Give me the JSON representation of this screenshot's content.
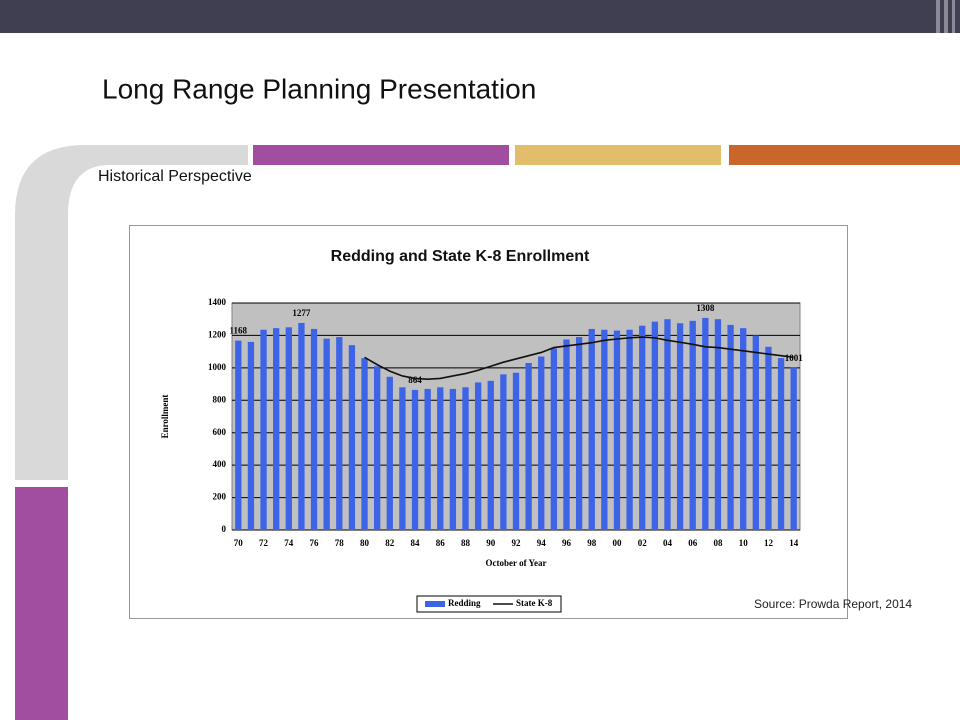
{
  "slide": {
    "title": "Long Range Planning Presentation",
    "subtitle": "Historical Perspective",
    "source": "Source: Prowda Report, 2014"
  },
  "chart_data": {
    "type": "bar",
    "title": "Redding and State K-8 Enrollment",
    "x_label": "October of Year",
    "y_label": "Enrollment",
    "categories": [
      "70",
      null,
      "72",
      null,
      "74",
      null,
      "76",
      null,
      "78",
      null,
      "80",
      null,
      "82",
      null,
      "84",
      null,
      "86",
      null,
      "88",
      null,
      "90",
      null,
      "92",
      null,
      "94",
      null,
      "96",
      null,
      "98",
      null,
      "00",
      null,
      "02",
      null,
      "04",
      null,
      "06",
      null,
      "08",
      null,
      "10",
      null,
      "12",
      null,
      "14"
    ],
    "series": [
      {
        "name": "Redding",
        "type": "bar",
        "color": "#3d63e6",
        "values": [
          1168,
          1160,
          1235,
          1245,
          1250,
          1277,
          1240,
          1180,
          1190,
          1140,
          1060,
          1010,
          945,
          880,
          864,
          870,
          880,
          870,
          880,
          910,
          920,
          960,
          970,
          1030,
          1070,
          1120,
          1175,
          1190,
          1240,
          1235,
          1230,
          1235,
          1260,
          1285,
          1300,
          1275,
          1290,
          1308,
          1300,
          1265,
          1245,
          1200,
          1130,
          1060,
          1001
        ],
        "value_labels": [
          "1168",
          null,
          null,
          null,
          null,
          "1277",
          null,
          null,
          null,
          null,
          null,
          null,
          null,
          null,
          "864",
          null,
          null,
          null,
          null,
          null,
          null,
          null,
          null,
          null,
          null,
          null,
          null,
          null,
          null,
          null,
          null,
          null,
          null,
          null,
          null,
          null,
          null,
          "1308",
          null,
          null,
          null,
          null,
          null,
          null,
          "1001"
        ]
      },
      {
        "name": "State K-8",
        "type": "line",
        "color": "#111111",
        "values": [
          null,
          null,
          null,
          null,
          null,
          null,
          null,
          null,
          null,
          null,
          1065,
          1020,
          980,
          950,
          935,
          930,
          935,
          950,
          965,
          985,
          1010,
          1035,
          1055,
          1075,
          1095,
          1125,
          1135,
          1145,
          1155,
          1170,
          1178,
          1185,
          1190,
          1185,
          1170,
          1158,
          1145,
          1130,
          1125,
          1115,
          1105,
          1095,
          1085,
          1075,
          1065
        ]
      }
    ],
    "ylim": [
      0,
      1400
    ],
    "yticks": [
      0,
      200,
      400,
      600,
      800,
      1000,
      1200,
      1400
    ],
    "grid": true,
    "legend": "bottom"
  }
}
